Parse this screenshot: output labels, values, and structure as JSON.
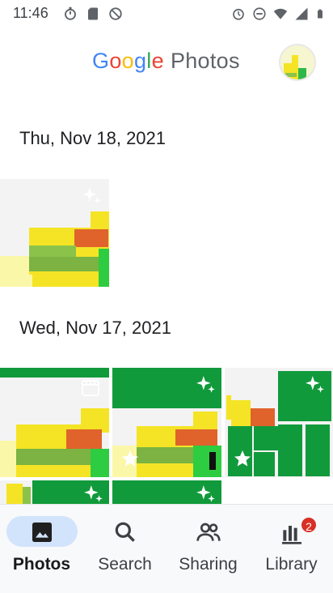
{
  "status_bar": {
    "time": "11:46",
    "left_icons": [
      "stopwatch-icon",
      "sd-card-icon",
      "do-not-disturb-off-icon"
    ],
    "right_icons": [
      "alarm-icon",
      "dnd-icon",
      "wifi-icon",
      "signal-icon",
      "battery-icon"
    ]
  },
  "app_bar": {
    "logo_google": [
      "G",
      "o",
      "o",
      "g",
      "l",
      "e"
    ],
    "logo_photos": "Photos",
    "account_icon": "account-avatar"
  },
  "sections": [
    {
      "date": "Thu, Nov 18, 2021"
    },
    {
      "date": "Wed, Nov 17, 2021"
    }
  ],
  "photo_badges": {
    "sparkle": "sparkle-icon",
    "movie": "movie-icon",
    "star": "star-icon"
  },
  "bottom_nav": {
    "items": [
      {
        "label": "Photos",
        "icon": "photos-icon",
        "active": true
      },
      {
        "label": "Search",
        "icon": "search-icon",
        "active": false
      },
      {
        "label": "Sharing",
        "icon": "sharing-icon",
        "active": false
      },
      {
        "label": "Library",
        "icon": "library-icon",
        "active": false,
        "badge": "2"
      }
    ]
  },
  "colors": {
    "accent": "#1a73e8",
    "nav_pill": "#d2e3fc",
    "photo_green": "#119a3b",
    "photo_yellow": "#f4e425",
    "photo_orange": "#e0632c"
  }
}
